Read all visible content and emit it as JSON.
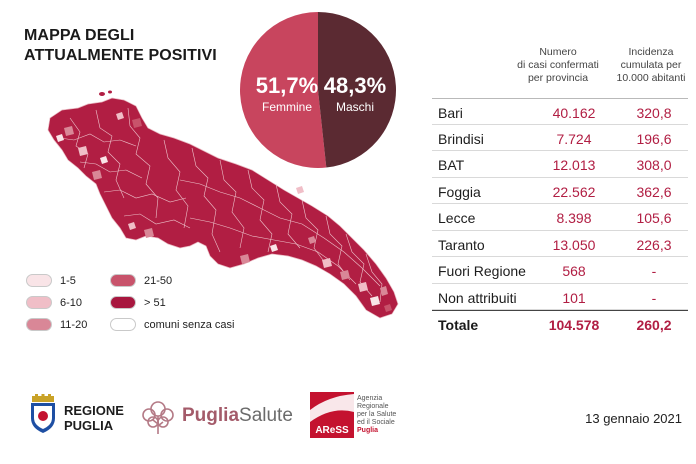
{
  "title": {
    "line1": "MAPPA DEGLI",
    "line2": "ATTUALMENTE POSITIVI"
  },
  "gender": {
    "female": {
      "pct": "51,7%",
      "label": "Femmine",
      "value": 51.7,
      "color": "#c8455e"
    },
    "male": {
      "pct": "48,3%",
      "label": "Maschi",
      "value": 48.3,
      "color": "#5b2a32"
    }
  },
  "colors": {
    "accent": "#b11e43",
    "map_fill": "#b11e43",
    "text": "#1d1d1d"
  },
  "table": {
    "col1": "Numero\ndi casi confermati\nper provincia",
    "col2": "Incidenza\ncumulata per\n10.000 abitanti",
    "rows": [
      {
        "name": "Bari",
        "cases": "40.162",
        "inc": "320,8"
      },
      {
        "name": "Brindisi",
        "cases": "7.724",
        "inc": "196,6"
      },
      {
        "name": "BAT",
        "cases": "12.013",
        "inc": "308,0"
      },
      {
        "name": "Foggia",
        "cases": "22.562",
        "inc": "362,6"
      },
      {
        "name": "Lecce",
        "cases": "8.398",
        "inc": "105,6"
      },
      {
        "name": "Taranto",
        "cases": "13.050",
        "inc": "226,3"
      },
      {
        "name": "Fuori Regione",
        "cases": "568",
        "inc": "-"
      },
      {
        "name": "Non attribuiti",
        "cases": "101",
        "inc": "-"
      }
    ],
    "total": {
      "name": "Totale",
      "cases": "104.578",
      "inc": "260,2"
    }
  },
  "legend": [
    {
      "label": "1-5",
      "color": "#f9e4e7"
    },
    {
      "label": "6-10",
      "color": "#f0bec7"
    },
    {
      "label": "11-20",
      "color": "#d98797"
    },
    {
      "label": "21-50",
      "color": "#c8536b"
    },
    {
      "label": "> 51",
      "color": "#a8173f"
    },
    {
      "label": "comuni senza casi",
      "color": "#ffffff"
    }
  ],
  "footer": {
    "regione": {
      "line1": "REGIONE",
      "line2": "PUGLIA"
    },
    "puglia_salute": {
      "part1": "Puglia",
      "part2": "Salute"
    },
    "aress": {
      "logo": "AReSS",
      "line1": "Agenzia",
      "line2": "Regionale",
      "line3": "per la Salute",
      "line4": "ed il Sociale",
      "line5": "Puglia"
    },
    "date": "13 gennaio 2021"
  }
}
